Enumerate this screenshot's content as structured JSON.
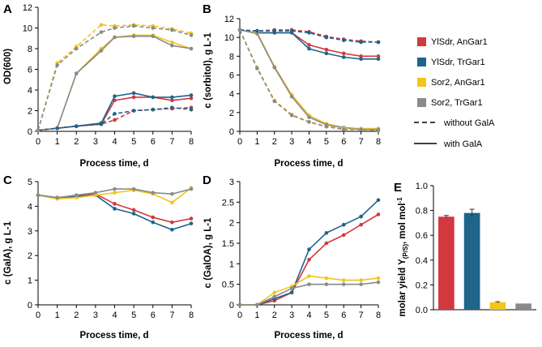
{
  "colors": {
    "ylsdr_angar1": "#d1393f",
    "ylsdr_trgar1": "#1f648b",
    "sor2_angar1": "#f2c51b",
    "sor2_trgar1": "#8a8a8a"
  },
  "legend": {
    "entries": [
      {
        "label": "YlSdr, AnGar1",
        "color": "#d1393f"
      },
      {
        "label": "YlSdr, TrGar1",
        "color": "#1f648b"
      },
      {
        "label": "Sor2, AnGar1",
        "color": "#f2c51b"
      },
      {
        "label": "Sor2, TrGar1",
        "color": "#8a8a8a"
      }
    ],
    "line_styles": [
      {
        "label": "without GalA",
        "style": "dashed"
      },
      {
        "label": "with GalA",
        "style": "solid"
      }
    ]
  },
  "chart_data": [
    {
      "panel": "A",
      "type": "line",
      "title": "",
      "xlabel": "Process time, d",
      "ylabel": "OD(600)",
      "xlim": [
        0,
        8
      ],
      "ylim": [
        0,
        12
      ],
      "xticks": [
        "0",
        "1",
        "2",
        "3",
        "4",
        "5",
        "6",
        "7",
        "8"
      ],
      "yticks": [
        "0",
        "2",
        "4",
        "6",
        "8",
        "10",
        "12"
      ],
      "x": [
        0,
        1,
        2,
        3.3,
        4,
        5,
        6,
        7,
        8
      ],
      "series": [
        {
          "name": "YlSdr, AnGar1 (with GalA)",
          "color": "#d1393f",
          "dashed": false,
          "values": [
            0.1,
            0.3,
            0.5,
            0.7,
            3.0,
            3.3,
            3.3,
            3.0,
            3.2
          ]
        },
        {
          "name": "YlSdr, TrGar1 (with GalA)",
          "color": "#1f648b",
          "dashed": false,
          "values": [
            0.1,
            0.3,
            0.5,
            0.8,
            3.4,
            3.7,
            3.3,
            3.3,
            3.5
          ]
        },
        {
          "name": "Sor2, AnGar1 (with GalA)",
          "color": "#f2c51b",
          "dashed": false,
          "values": [
            0.1,
            0.3,
            5.6,
            8.0,
            9.1,
            9.3,
            9.3,
            8.6,
            8.0
          ]
        },
        {
          "name": "Sor2, TrGar1 (with GalA)",
          "color": "#8a8a8a",
          "dashed": false,
          "values": [
            0.1,
            0.3,
            5.6,
            7.8,
            9.1,
            9.2,
            9.2,
            8.3,
            8.0
          ]
        },
        {
          "name": "YlSdr, AnGar1 (without GalA)",
          "color": "#d1393f",
          "dashed": true,
          "values": [
            0.1,
            0.3,
            0.5,
            0.7,
            1.1,
            2.0,
            2.1,
            2.2,
            2.3
          ]
        },
        {
          "name": "YlSdr, TrGar1 (without GalA)",
          "color": "#1f648b",
          "dashed": true,
          "values": [
            0.1,
            0.3,
            0.5,
            0.7,
            1.7,
            2.0,
            2.1,
            2.3,
            2.1
          ]
        },
        {
          "name": "Sor2, AnGar1 (without GalA)",
          "color": "#f2c51b",
          "dashed": true,
          "values": [
            0.1,
            6.6,
            8.2,
            10.3,
            10.2,
            10.3,
            10.2,
            9.9,
            9.5
          ]
        },
        {
          "name": "Sor2, TrGar1 (without GalA)",
          "color": "#8a8a8a",
          "dashed": true,
          "values": [
            0.1,
            6.4,
            8.0,
            9.6,
            10.0,
            10.2,
            10.0,
            9.8,
            9.3
          ]
        }
      ]
    },
    {
      "panel": "B",
      "type": "line",
      "title": "",
      "xlabel": "Process time, d",
      "ylabel": "c (sorbitol), g L-1",
      "xlim": [
        0,
        8
      ],
      "ylim": [
        0,
        12
      ],
      "xticks": [
        "0",
        "1",
        "2",
        "3",
        "4",
        "5",
        "6",
        "7",
        "8"
      ],
      "yticks": [
        "0",
        "2",
        "4",
        "6",
        "8",
        "10",
        "12"
      ],
      "x": [
        0,
        1,
        2,
        3,
        4,
        5,
        6,
        7,
        8
      ],
      "series": [
        {
          "name": "YlSdr, AnGar1 (with GalA)",
          "color": "#d1393f",
          "dashed": false,
          "values": [
            10.8,
            10.5,
            10.5,
            10.5,
            9.2,
            8.7,
            8.3,
            8.0,
            8.0
          ]
        },
        {
          "name": "YlSdr, TrGar1 (with GalA)",
          "color": "#1f648b",
          "dashed": false,
          "values": [
            10.8,
            10.5,
            10.5,
            10.5,
            8.8,
            8.3,
            7.9,
            7.7,
            7.7
          ]
        },
        {
          "name": "Sor2, AnGar1 (with GalA)",
          "color": "#f2c51b",
          "dashed": false,
          "values": [
            10.8,
            10.5,
            6.9,
            3.9,
            1.7,
            0.8,
            0.4,
            0.3,
            0.3
          ]
        },
        {
          "name": "Sor2, TrGar1 (with GalA)",
          "color": "#8a8a8a",
          "dashed": false,
          "values": [
            10.8,
            10.4,
            6.8,
            3.7,
            1.5,
            0.7,
            0.4,
            0.2,
            0.2
          ]
        },
        {
          "name": "YlSdr, AnGar1 (without GalA)",
          "color": "#d1393f",
          "dashed": true,
          "values": [
            10.8,
            10.7,
            10.8,
            10.8,
            10.6,
            10.1,
            9.8,
            9.6,
            9.5
          ]
        },
        {
          "name": "YlSdr, TrGar1 (without GalA)",
          "color": "#1f648b",
          "dashed": true,
          "values": [
            10.8,
            10.7,
            10.7,
            10.7,
            10.5,
            10.0,
            9.7,
            9.5,
            9.5
          ]
        },
        {
          "name": "Sor2, AnGar1 (without GalA)",
          "color": "#f2c51b",
          "dashed": true,
          "values": [
            10.8,
            6.8,
            3.3,
            1.8,
            1.0,
            0.5,
            0.3,
            0.2,
            0.1
          ]
        },
        {
          "name": "Sor2, TrGar1 (without GalA)",
          "color": "#8a8a8a",
          "dashed": true,
          "values": [
            10.8,
            6.7,
            3.2,
            1.7,
            1.0,
            0.5,
            0.2,
            0.2,
            0.1
          ]
        }
      ]
    },
    {
      "panel": "C",
      "type": "line",
      "title": "",
      "xlabel": "Process time, d",
      "ylabel": "c (GalA), g L-1",
      "xlim": [
        0,
        8
      ],
      "ylim": [
        0,
        5
      ],
      "xticks": [
        "0",
        "1",
        "2",
        "3",
        "4",
        "5",
        "6",
        "7",
        "8"
      ],
      "yticks": [
        "0",
        "1",
        "2",
        "3",
        "4",
        "5"
      ],
      "x": [
        0,
        1,
        2,
        3,
        4,
        5,
        6,
        7,
        8
      ],
      "series": [
        {
          "name": "YlSdr, AnGar1",
          "color": "#d1393f",
          "dashed": false,
          "values": [
            4.45,
            4.35,
            4.4,
            4.5,
            4.1,
            3.85,
            3.55,
            3.35,
            3.5
          ]
        },
        {
          "name": "YlSdr, TrGar1",
          "color": "#1f648b",
          "dashed": false,
          "values": [
            4.45,
            4.35,
            4.4,
            4.45,
            3.9,
            3.7,
            3.35,
            3.05,
            3.3
          ]
        },
        {
          "name": "Sor2, AnGar1",
          "color": "#f2c51b",
          "dashed": false,
          "values": [
            4.45,
            4.3,
            4.35,
            4.45,
            4.55,
            4.65,
            4.5,
            4.15,
            4.75
          ]
        },
        {
          "name": "Sor2, TrGar1",
          "color": "#8a8a8a",
          "dashed": false,
          "values": [
            4.45,
            4.35,
            4.45,
            4.55,
            4.7,
            4.7,
            4.55,
            4.5,
            4.7
          ]
        }
      ]
    },
    {
      "panel": "D",
      "type": "line",
      "title": "",
      "xlabel": "Process time, d",
      "ylabel": "c (GalOA), g L-1",
      "xlim": [
        0,
        8
      ],
      "ylim": [
        0,
        3
      ],
      "xticks": [
        "0",
        "1",
        "2",
        "3",
        "4",
        "5",
        "6",
        "7",
        "8"
      ],
      "yticks": [
        "0",
        "0.5",
        "1",
        "1.5",
        "2",
        "2.5",
        "3"
      ],
      "x": [
        0,
        1,
        2,
        3,
        4,
        5,
        6,
        7,
        8
      ],
      "series": [
        {
          "name": "YlSdr, AnGar1",
          "color": "#d1393f",
          "dashed": false,
          "values": [
            0,
            0,
            0.1,
            0.3,
            1.1,
            1.5,
            1.7,
            1.95,
            2.2
          ]
        },
        {
          "name": "YlSdr, TrGar1",
          "color": "#1f648b",
          "dashed": false,
          "values": [
            0,
            0,
            0.15,
            0.3,
            1.35,
            1.75,
            1.95,
            2.15,
            2.55
          ]
        },
        {
          "name": "Sor2, AnGar1",
          "color": "#f2c51b",
          "dashed": false,
          "values": [
            0,
            0,
            0.3,
            0.45,
            0.7,
            0.65,
            0.6,
            0.6,
            0.65
          ]
        },
        {
          "name": "Sor2, TrGar1",
          "color": "#8a8a8a",
          "dashed": false,
          "values": [
            0,
            0,
            0.2,
            0.4,
            0.5,
            0.5,
            0.5,
            0.5,
            0.55
          ]
        }
      ]
    },
    {
      "panel": "E",
      "type": "bar",
      "title": "",
      "xlabel": "",
      "ylabel": "molar yield Y(P/S), mol mol-1",
      "ylim": [
        0,
        1
      ],
      "yticks": [
        "0.0",
        "0.2",
        "0.4",
        "0.6",
        "0.8",
        "1.0"
      ],
      "categories": [
        "YlSdr, AnGar1",
        "YlSdr, TrGar1",
        "Sor2, AnGar1",
        "Sor2, TrGar1"
      ],
      "values": [
        0.75,
        0.78,
        0.06,
        0.05
      ],
      "errors": [
        0.01,
        0.03,
        0.005,
        0.0
      ],
      "colors": [
        "#d1393f",
        "#1f648b",
        "#f2c51b",
        "#8a8a8a"
      ]
    }
  ]
}
